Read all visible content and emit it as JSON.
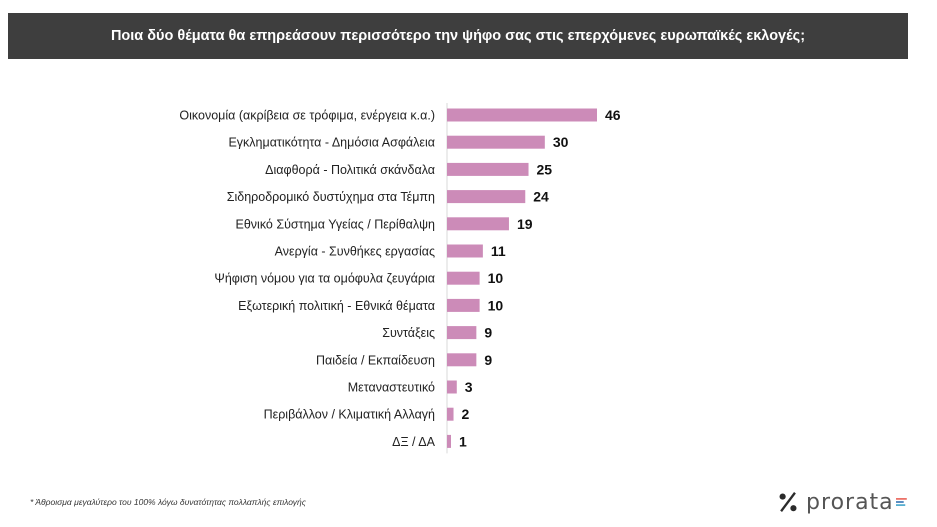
{
  "chart_data": {
    "type": "bar",
    "orientation": "horizontal",
    "title": "Ποια δύο θέματα θα επηρεάσουν περισσότερο την ψήφο σας στις επερχόμενες ευρωπαϊκές εκλογές;",
    "categories": [
      "Οικονομία (ακρίβεια σε τρόφιμα, ενέργεια κ.α.)",
      "Εγκληματικότητα - Δημόσια Ασφάλεια",
      "Διαφθορά - Πολιτικά σκάνδαλα",
      "Σιδηροδρομικό δυστύχημα στα Τέμπη",
      "Εθνικό Σύστημα Υγείας / Περίθαλψη",
      "Ανεργία - Συνθήκες εργασίας",
      "Ψήφιση νόμου για τα ομόφυλα ζευγάρια",
      "Εξωτερική πολιτική - Εθνικά θέματα",
      "Συντάξεις",
      "Παιδεία / Εκπαίδευση",
      "Μεταναστευτικό",
      "Περιβάλλον / Κλιματική Αλλαγή",
      "ΔΞ / ΔΑ"
    ],
    "values": [
      46,
      30,
      25,
      24,
      19,
      11,
      10,
      10,
      9,
      9,
      3,
      2,
      1
    ],
    "bar_color": "#cc8bb8",
    "xlim": [
      0,
      46
    ],
    "grid": false,
    "legend": "none"
  },
  "footnote": "* Άθροισμα μεγαλύτερο του 100% λόγω δυνατότητας πολλαπλής επιλογής",
  "logo": {
    "text": "prorata",
    "icon": "percent-logo-icon",
    "accent_colors": [
      "#e85a4f",
      "#2b6cb0",
      "#3aa0c8"
    ]
  }
}
